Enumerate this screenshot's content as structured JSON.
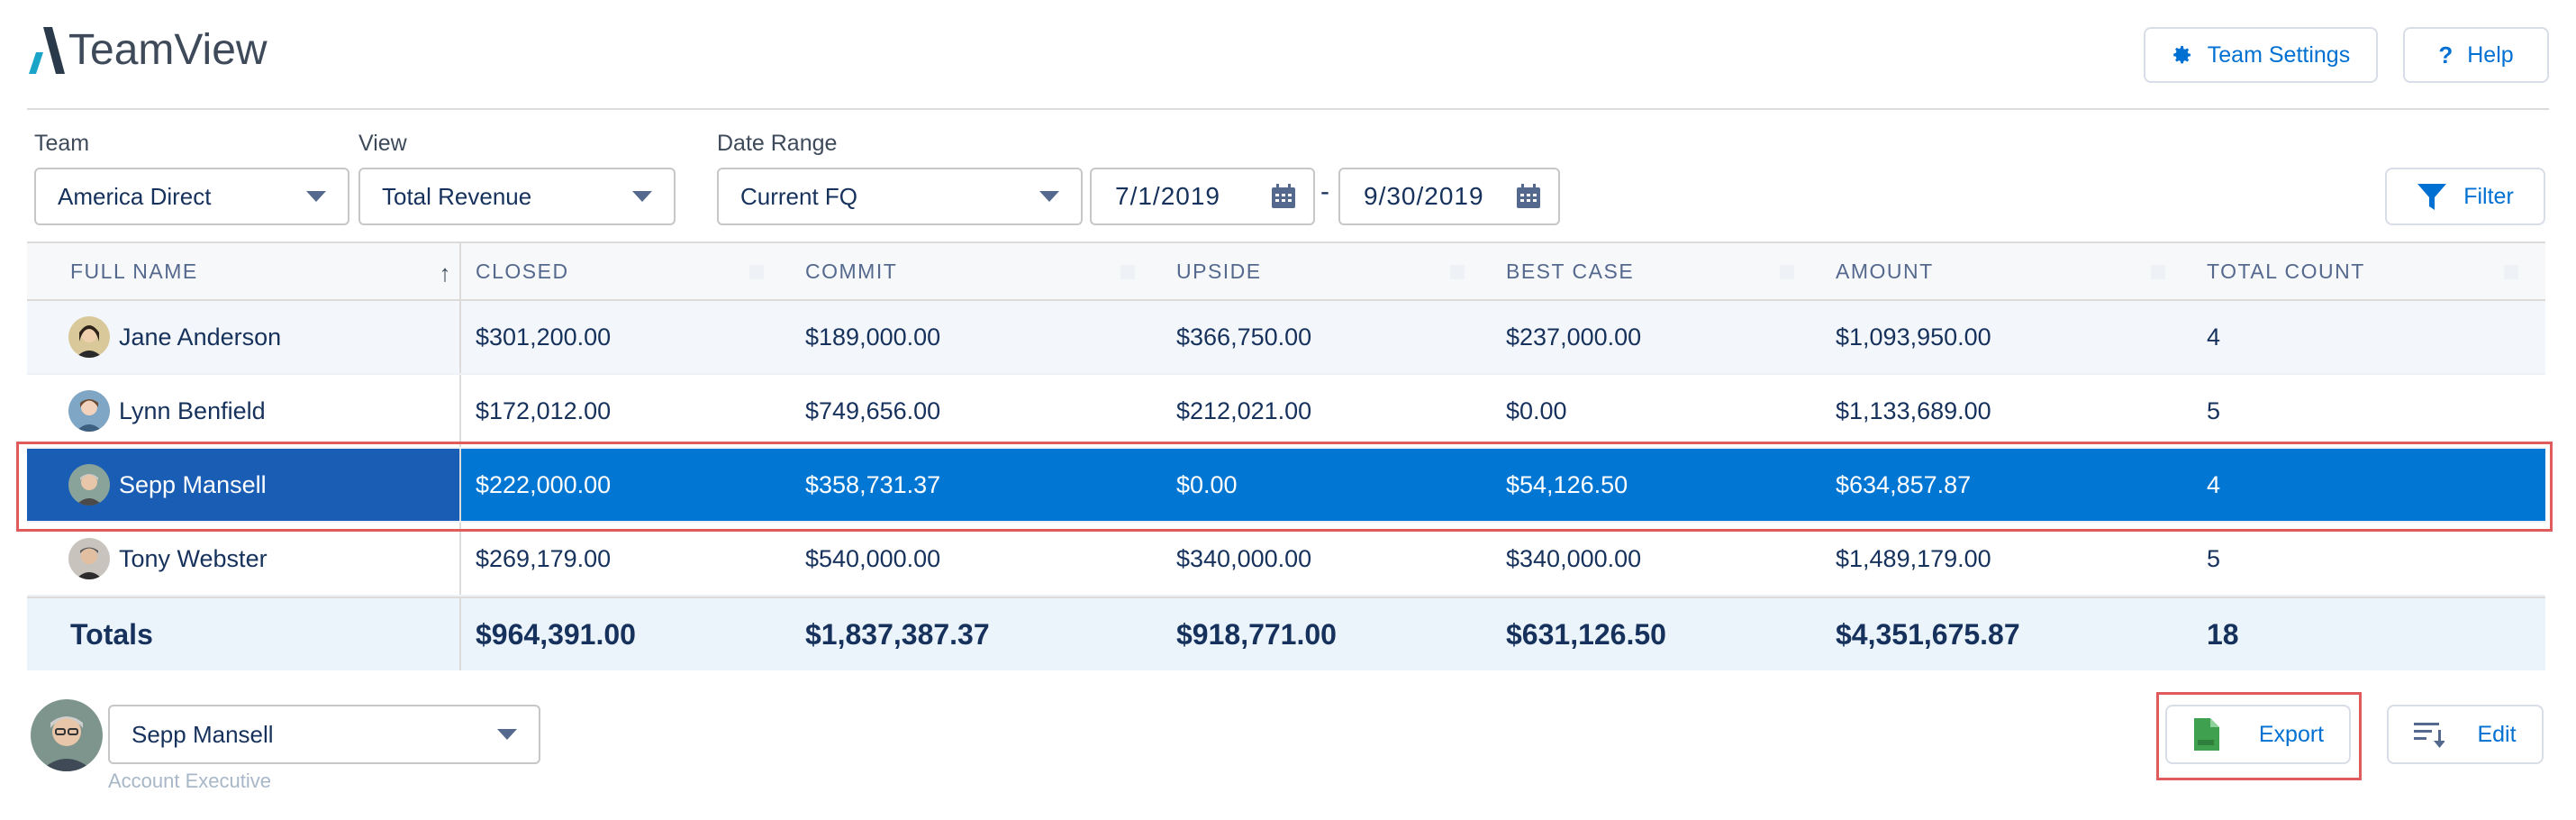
{
  "app": {
    "title": "TeamView"
  },
  "header": {
    "team_settings_label": "Team Settings",
    "help_label": "Help"
  },
  "filters": {
    "team_label": "Team",
    "team_value": "America Direct",
    "view_label": "View",
    "view_value": "Total Revenue",
    "date_range_label": "Date Range",
    "date_range_value": "Current FQ",
    "start_date": "7/1/2019",
    "end_date": "9/30/2019",
    "date_separator": "-",
    "filter_label": "Filter"
  },
  "table": {
    "columns": [
      "FULL NAME",
      "CLOSED",
      "COMMIT",
      "UPSIDE",
      "BEST CASE",
      "AMOUNT",
      "TOTAL COUNT"
    ],
    "rows": [
      {
        "name": "Jane Anderson",
        "closed": "$301,200.00",
        "commit": "$189,000.00",
        "upside": "$366,750.00",
        "best_case": "$237,000.00",
        "amount": "$1,093,950.00",
        "count": "4"
      },
      {
        "name": "Lynn Benfield",
        "closed": "$172,012.00",
        "commit": "$749,656.00",
        "upside": "$212,021.00",
        "best_case": "$0.00",
        "amount": "$1,133,689.00",
        "count": "5"
      },
      {
        "name": "Sepp Mansell",
        "closed": "$222,000.00",
        "commit": "$358,731.37",
        "upside": "$0.00",
        "best_case": "$54,126.50",
        "amount": "$634,857.87",
        "count": "4"
      },
      {
        "name": "Tony Webster",
        "closed": "$269,179.00",
        "commit": "$540,000.00",
        "upside": "$340,000.00",
        "best_case": "$340,000.00",
        "amount": "$1,489,179.00",
        "count": "5"
      }
    ],
    "totals": {
      "label": "Totals",
      "closed": "$964,391.00",
      "commit": "$1,837,387.37",
      "upside": "$918,771.00",
      "best_case": "$631,126.50",
      "amount": "$4,351,675.87",
      "count": "18"
    }
  },
  "footer": {
    "user_name": "Sepp Mansell",
    "user_role": "Account Executive",
    "export_label": "Export",
    "edit_label": "Edit"
  },
  "colors": {
    "brand": "#0070d2",
    "selected_row": "#0176d3",
    "highlight_outline": "#e05b5b"
  }
}
